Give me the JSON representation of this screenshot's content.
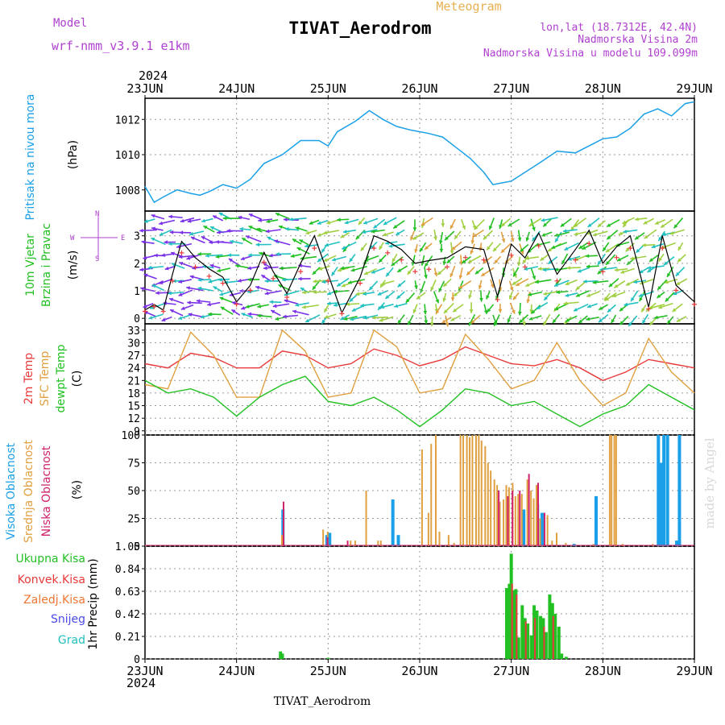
{
  "header": {
    "model_label": "Model",
    "model_name": "wrf-nmm_v3.9.1  e1km",
    "meteogram": "Meteogram",
    "station": "TIVAT_Aerodrom",
    "lonlat": "lon,lat (18.7312E, 42.4N)",
    "elev": "Nadmorska Visina 2m",
    "elev_model": "Nadmorska Visina u modelu 109.099m",
    "year_top": "2024",
    "year_bottom": "2024",
    "footer_station": "TIVAT_Aerodrom",
    "watermark": "made by Angel"
  },
  "colors": {
    "pressure": "#1aa0e8",
    "temp2m": "#e83a3a",
    "sfc": "#e0a040",
    "dew": "#22c022",
    "high_cloud": "#1aa0e8",
    "mid_cloud": "#e0a040",
    "low_cloud": "#d0206a",
    "total_precip": "#22c022",
    "conv_precip": "#e83a3a",
    "strat_precip": "#ee7733",
    "snow": "#4a4ae8",
    "hail": "#22c0c0",
    "label_purple": "#b040d0"
  },
  "dates": [
    "23JUN",
    "24JUN",
    "25JUN",
    "26JUN",
    "27JUN",
    "28JUN",
    "29JUN"
  ],
  "panels": {
    "pressure": {
      "label1": "Pritisak na nivou mora",
      "unit": "(hPa)",
      "ticks": [
        1008,
        1010,
        1012
      ]
    },
    "wind": {
      "label1": "10m Vjetar",
      "label2": "Brzina i Pravac",
      "unit": "(m/s)",
      "ticks": [
        0,
        1,
        2,
        3
      ],
      "compass_w": "W",
      "compass_e": "E",
      "compass_n": "N",
      "compass_s": "S"
    },
    "temp": {
      "label1": "2m Temp",
      "label2": "SFC Temp",
      "label3": "dewpt Temp",
      "unit": "(C)",
      "ticks": [
        9,
        12,
        15,
        18,
        21,
        24,
        27,
        30,
        33
      ]
    },
    "cloud": {
      "label1": "Visoka Oblacnost",
      "label2": "Srednja Oblacnost",
      "label3": "Niska Oblacnost",
      "unit": "(%)",
      "ticks": [
        0,
        25,
        50,
        75,
        100
      ]
    },
    "precip": {
      "legend": [
        "Ukupna Kisa",
        "Konvek.Kisa",
        "Zaledj.Kisa",
        "Snijeg",
        "Grad"
      ],
      "ylabel": "1hr Precip (mm)",
      "ticks": [
        "0",
        "0.21",
        "0.42",
        "0.63",
        "0.84",
        "1.05"
      ]
    }
  },
  "chart_data": [
    {
      "type": "line",
      "name": "pressure",
      "ylabel": "(hPa)",
      "ylim": [
        1006.8,
        1013.2
      ],
      "x_days": [
        0,
        0.1,
        0.2,
        0.35,
        0.5,
        0.6,
        0.7,
        0.85,
        1.0,
        1.15,
        1.3,
        1.5,
        1.7,
        1.9,
        2.0,
        2.1,
        2.3,
        2.45,
        2.6,
        2.75,
        2.9,
        3.1,
        3.25,
        3.4,
        3.55,
        3.7,
        3.8,
        3.9,
        4.0,
        4.15,
        4.3,
        4.5,
        4.7,
        4.85,
        5.0,
        5.15,
        5.3,
        5.45,
        5.6,
        5.75,
        5.9,
        6.0
      ],
      "values": [
        1008.2,
        1007.3,
        1007.6,
        1008.0,
        1007.8,
        1007.7,
        1007.9,
        1008.3,
        1008.1,
        1008.6,
        1009.5,
        1010.0,
        1010.8,
        1010.8,
        1010.5,
        1011.3,
        1011.9,
        1012.5,
        1012.0,
        1011.6,
        1011.4,
        1011.2,
        1011.0,
        1010.4,
        1009.8,
        1009.0,
        1008.3,
        1008.4,
        1008.5,
        1009.0,
        1009.5,
        1010.2,
        1010.1,
        1010.5,
        1010.9,
        1011.0,
        1011.5,
        1012.3,
        1012.6,
        1012.2,
        1012.9,
        1013.0
      ]
    },
    {
      "type": "line",
      "name": "wind speed",
      "ylabel": "(m/s)",
      "ylim": [
        -0.2,
        3.9
      ],
      "x_days": [
        0,
        0.1,
        0.2,
        0.3,
        0.4,
        0.55,
        0.7,
        0.85,
        1.0,
        1.15,
        1.3,
        1.4,
        1.55,
        1.7,
        1.85,
        2.0,
        2.15,
        2.35,
        2.5,
        2.65,
        2.8,
        2.95,
        3.1,
        3.3,
        3.5,
        3.7,
        3.85,
        4.0,
        4.15,
        4.3,
        4.5,
        4.7,
        4.85,
        5.0,
        5.15,
        5.3,
        5.5,
        5.65,
        5.8,
        6.0
      ],
      "values": [
        0.3,
        0.5,
        0.3,
        1.6,
        2.8,
        2.2,
        1.8,
        1.5,
        0.6,
        1.2,
        2.4,
        1.7,
        0.9,
        2.0,
        3.0,
        1.6,
        0.2,
        1.5,
        3.0,
        2.8,
        2.5,
        2.0,
        2.1,
        2.2,
        2.6,
        2.5,
        0.8,
        2.7,
        2.2,
        3.1,
        1.6,
        2.5,
        3.2,
        2.0,
        2.6,
        3.0,
        0.4,
        3.0,
        1.2,
        0.6
      ]
    },
    {
      "type": "line",
      "name": "temperature",
      "ylabel": "(C)",
      "ylim": [
        8,
        34.5
      ],
      "x_days": [
        0,
        0.25,
        0.5,
        0.75,
        1.0,
        1.25,
        1.5,
        1.75,
        2.0,
        2.25,
        2.5,
        2.75,
        3.0,
        3.25,
        3.5,
        3.75,
        4.0,
        4.25,
        4.5,
        4.75,
        5.0,
        5.25,
        5.5,
        5.75,
        6.0
      ],
      "series": [
        {
          "name": "2m Temp",
          "values": [
            25,
            24,
            27.5,
            26.5,
            24,
            24,
            28,
            27,
            24,
            25,
            28.5,
            27,
            24.5,
            26,
            29,
            27,
            25,
            24.5,
            26,
            24,
            21,
            23,
            26,
            25,
            24
          ]
        },
        {
          "name": "SFC Temp",
          "values": [
            20,
            19,
            32.5,
            27,
            17,
            17,
            33,
            28,
            17,
            18,
            33,
            29,
            18,
            19,
            32,
            26,
            19,
            21,
            30,
            21,
            15,
            18,
            31,
            23,
            18
          ]
        },
        {
          "name": "dewpt Temp",
          "values": [
            21,
            18,
            19,
            17,
            12.5,
            17,
            20,
            22,
            16,
            15,
            17,
            14,
            10,
            14,
            19,
            18,
            15,
            16,
            13,
            10,
            13,
            15,
            20,
            17,
            14
          ]
        }
      ]
    },
    {
      "type": "bar",
      "name": "cloud cover",
      "ylabel": "(%)",
      "ylim": [
        0,
        100
      ],
      "series": [
        {
          "name": "Visoka Oblacnost",
          "points": [
            [
              1.52,
              33
            ],
            [
              2.0,
              10
            ],
            [
              2.03,
              12
            ],
            [
              2.72,
              42
            ],
            [
              2.78,
              10
            ],
            [
              4.15,
              33
            ],
            [
              4.3,
              38
            ],
            [
              4.35,
              30
            ],
            [
              4.7,
              2
            ],
            [
              4.94,
              45
            ],
            [
              5.62,
              100
            ],
            [
              5.65,
              75
            ],
            [
              5.68,
              100
            ],
            [
              5.72,
              100
            ],
            [
              5.82,
              5
            ],
            [
              5.85,
              100
            ]
          ]
        },
        {
          "name": "Srednja Oblacnost",
          "points": [
            [
              1.5,
              10
            ],
            [
              1.95,
              15
            ],
            [
              2.0,
              13
            ],
            [
              2.25,
              5
            ],
            [
              2.3,
              5
            ],
            [
              2.42,
              50
            ],
            [
              2.55,
              5
            ],
            [
              2.58,
              5
            ],
            [
              3.03,
              87
            ],
            [
              3.1,
              30
            ],
            [
              3.13,
              92
            ],
            [
              3.18,
              100
            ],
            [
              3.22,
              13
            ],
            [
              3.32,
              10
            ],
            [
              3.38,
              3
            ],
            [
              3.45,
              100
            ],
            [
              3.48,
              100
            ],
            [
              3.52,
              100
            ],
            [
              3.55,
              98
            ],
            [
              3.58,
              100
            ],
            [
              3.62,
              100
            ],
            [
              3.65,
              100
            ],
            [
              3.68,
              95
            ],
            [
              3.72,
              90
            ],
            [
              3.75,
              75
            ],
            [
              3.78,
              68
            ],
            [
              3.82,
              60
            ],
            [
              3.85,
              55
            ],
            [
              3.88,
              40
            ],
            [
              3.92,
              42
            ],
            [
              3.95,
              55
            ],
            [
              3.98,
              53
            ],
            [
              4.02,
              57
            ],
            [
              4.05,
              45
            ],
            [
              4.08,
              47
            ],
            [
              4.12,
              47
            ],
            [
              4.18,
              60
            ],
            [
              4.22,
              50
            ],
            [
              4.25,
              43
            ],
            [
              4.28,
              55
            ],
            [
              4.32,
              25
            ],
            [
              4.4,
              28
            ],
            [
              4.45,
              5
            ],
            [
              4.5,
              12
            ],
            [
              4.6,
              3
            ],
            [
              4.9,
              2
            ],
            [
              5.08,
              100
            ],
            [
              5.1,
              100
            ],
            [
              5.13,
              100
            ],
            [
              5.15,
              100
            ],
            [
              5.22,
              2
            ],
            [
              5.55,
              2
            ]
          ]
        },
        {
          "name": "Niska Oblacnost",
          "points": [
            [
              1.5,
              40
            ],
            [
              1.98,
              8
            ],
            [
              2.2,
              5
            ],
            [
              3.85,
              50
            ],
            [
              3.95,
              45
            ],
            [
              4.0,
              50
            ],
            [
              4.08,
              50
            ],
            [
              4.18,
              65
            ],
            [
              4.28,
              57
            ],
            [
              4.35,
              30
            ]
          ]
        }
      ]
    },
    {
      "type": "bar",
      "name": "precipitation",
      "ylabel": "1hr Precip (mm)",
      "ylim": [
        0,
        1.05
      ],
      "series": [
        {
          "name": "Ukupna Kisa",
          "points": [
            [
              1.48,
              0.07
            ],
            [
              1.5,
              0.05
            ],
            [
              2.0,
              0.01
            ],
            [
              3.95,
              0.66
            ],
            [
              3.98,
              0.7
            ],
            [
              4.0,
              0.98
            ],
            [
              4.02,
              0.64
            ],
            [
              4.05,
              0.65
            ],
            [
              4.08,
              0.2
            ],
            [
              4.12,
              0.5
            ],
            [
              4.15,
              0.38
            ],
            [
              4.18,
              0.33
            ],
            [
              4.22,
              0.22
            ],
            [
              4.25,
              0.5
            ],
            [
              4.28,
              0.45
            ],
            [
              4.32,
              0.4
            ],
            [
              4.35,
              0.38
            ],
            [
              4.38,
              0.25
            ],
            [
              4.42,
              0.6
            ],
            [
              4.45,
              0.52
            ],
            [
              4.48,
              0.42
            ],
            [
              4.52,
              0.3
            ],
            [
              4.55,
              0.05
            ],
            [
              4.6,
              0.02
            ]
          ]
        },
        {
          "name": "Konvek.Kisa",
          "points": [
            [
              4.0,
              0.7
            ],
            [
              4.05,
              0.6
            ],
            [
              4.15,
              0.35
            ],
            [
              4.25,
              0.38
            ],
            [
              4.35,
              0.3
            ],
            [
              4.45,
              0.4
            ]
          ]
        }
      ]
    }
  ]
}
